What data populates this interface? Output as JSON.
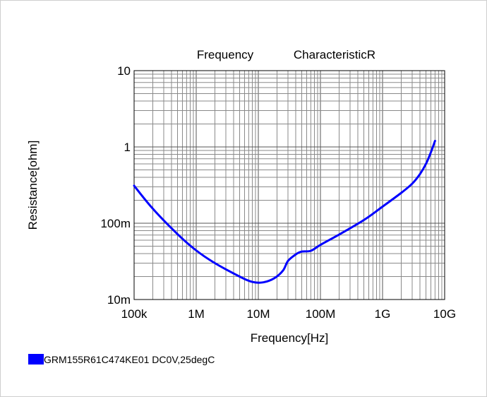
{
  "chart_data": {
    "type": "line",
    "title_left": "Frequency",
    "title_right": "CharacteristicR",
    "xlabel": "Frequency[Hz]",
    "ylabel": "Resistance[ohm]",
    "x_scale": "log",
    "y_scale": "log",
    "xlim": [
      100000,
      10000000000
    ],
    "ylim": [
      0.01,
      10
    ],
    "x_ticks": [
      {
        "value": 100000,
        "label": "100k"
      },
      {
        "value": 1000000,
        "label": "1M"
      },
      {
        "value": 10000000,
        "label": "10M"
      },
      {
        "value": 100000000,
        "label": "100M"
      },
      {
        "value": 1000000000,
        "label": "1G"
      },
      {
        "value": 10000000000,
        "label": "10G"
      }
    ],
    "y_ticks": [
      {
        "value": 0.01,
        "label": "10m"
      },
      {
        "value": 0.1,
        "label": "100m"
      },
      {
        "value": 1,
        "label": "1"
      },
      {
        "value": 10,
        "label": "10"
      }
    ],
    "grid": true,
    "legend_position": "bottom-left",
    "series": [
      {
        "name": "GRM155R61C474KE01 DC0V,25degC",
        "color": "#0000ff",
        "x": [
          100000,
          200000,
          500000,
          1000000,
          2000000,
          5000000,
          8000000,
          12000000,
          18000000,
          25000000,
          30000000,
          40000000,
          50000000,
          70000000,
          100000000,
          200000000,
          500000000,
          1000000000,
          2000000000,
          3000000000,
          4000000000,
          5000000000,
          6000000000,
          7000000000
        ],
        "y": [
          0.31,
          0.155,
          0.072,
          0.044,
          0.03,
          0.02,
          0.017,
          0.0168,
          0.019,
          0.024,
          0.032,
          0.039,
          0.0425,
          0.0435,
          0.052,
          0.071,
          0.11,
          0.165,
          0.25,
          0.33,
          0.44,
          0.6,
          0.85,
          1.2
        ]
      }
    ]
  }
}
